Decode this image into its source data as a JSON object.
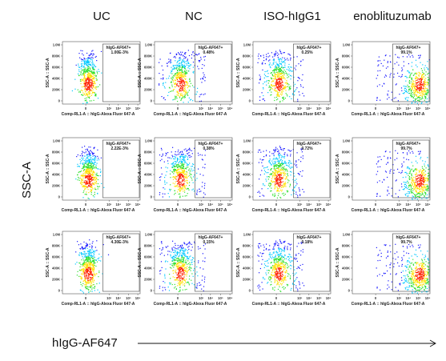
{
  "columns": [
    "UC",
    "NC",
    "ISO-hIgG1",
    "enoblituzumab"
  ],
  "y_axis_label": "SSC-A",
  "x_axis_label": "hIgG-AF647",
  "panel": {
    "y_label": "SSC-A :: SSC-A",
    "x_label": "Comp-RL1-A :: hIgG-Alexa Fluor    647-A",
    "gate_name": "hIgG-AF647+",
    "y_ticks": [
      "1.0M",
      "800K",
      "600K",
      "400K",
      "200K",
      "0"
    ],
    "x_ticks": [
      "0",
      "10³",
      "10⁴",
      "10⁵",
      "10⁶"
    ]
  },
  "gate_values": [
    [
      "1.00E-3%",
      "0.48%",
      "0.25%",
      "99.1%"
    ],
    [
      "2.22E-3%",
      "0.38%",
      "0.72%",
      "99.7%"
    ],
    [
      "4.30E-3%",
      "0.15%",
      "0.18%",
      "99.7%"
    ]
  ],
  "colors": {
    "density": [
      "#1a1aff",
      "#00c8ff",
      "#30e030",
      "#ffe000",
      "#ff2000"
    ],
    "frame": "#555555",
    "text": "#111111"
  }
}
